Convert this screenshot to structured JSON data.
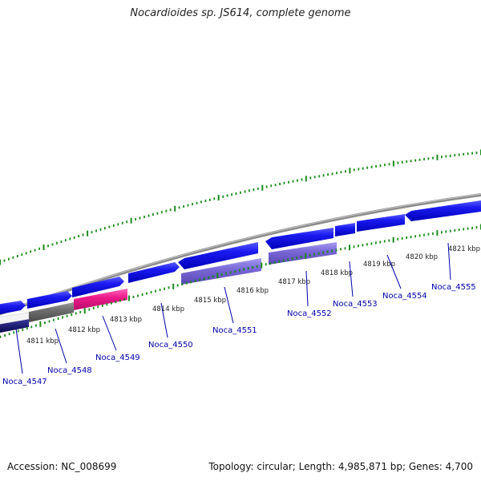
{
  "title": "Nocardioides sp. JS614, complete genome",
  "footer": {
    "accession": "Accession: NC_008699",
    "topology": "Topology: circular; Length: 4,985,871 bp; Genes: 4,700"
  },
  "colors": {
    "forward_cds": "#1010e6",
    "reverse_cds": "#7b6ad6",
    "highlight_cds": "#e8188a",
    "grey_cds": "#6e6e6e",
    "dark_cds": "#0a0a60",
    "backbone": "#8c8c8c",
    "tick": "#1a8a1a",
    "gene_label": "#0000aa"
  },
  "ruler_labels": [
    {
      "text": "4811 kbp"
    },
    {
      "text": "4812 kbp"
    },
    {
      "text": "4813 kbp"
    },
    {
      "text": "4814 kbp"
    },
    {
      "text": "4815 kbp"
    },
    {
      "text": "4816 kbp"
    },
    {
      "text": "4817 kbp"
    },
    {
      "text": "4818 kbp"
    },
    {
      "text": "4819 kbp"
    },
    {
      "text": "4820 kbp"
    },
    {
      "text": "4821 kbp"
    }
  ],
  "gene_labels": [
    {
      "text": "Noca_4547"
    },
    {
      "text": "Noca_4548"
    },
    {
      "text": "Noca_4549"
    },
    {
      "text": "Noca_4550"
    },
    {
      "text": "Noca_4551"
    },
    {
      "text": "Noca_4552"
    },
    {
      "text": "Noca_4553"
    },
    {
      "text": "Noca_4554"
    },
    {
      "text": "Noca_4555"
    }
  ]
}
